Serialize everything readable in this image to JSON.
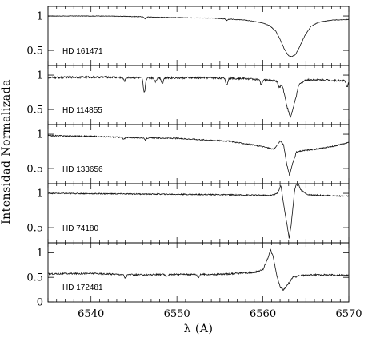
{
  "chart_data": {
    "type": "line",
    "ylabel": "Intensidad Normalizada",
    "xlabel": "λ (A)",
    "xlim": [
      6535,
      6570
    ],
    "x_ticks": [
      6540,
      6550,
      6560,
      6570
    ],
    "x_minor_step": 1,
    "grid": false,
    "panels": [
      {
        "label": "HD 161471",
        "ylim": [
          0.28,
          1.14
        ],
        "y_ticks": [
          0.5,
          1
        ],
        "y_tick_labels": [
          "0.5",
          "1"
        ],
        "line_points": [
          [
            6535,
            1.0
          ],
          [
            6541,
            1.0
          ],
          [
            6544,
            0.995
          ],
          [
            6546,
            0.99
          ],
          [
            6547,
            0.985
          ],
          [
            6551,
            0.975
          ],
          [
            6554,
            0.97
          ],
          [
            6556,
            0.955
          ],
          [
            6558,
            0.94
          ],
          [
            6559,
            0.92
          ],
          [
            6560,
            0.9
          ],
          [
            6560.8,
            0.86
          ],
          [
            6561.5,
            0.78
          ],
          [
            6562,
            0.66
          ],
          [
            6562.5,
            0.52
          ],
          [
            6563,
            0.42
          ],
          [
            6563.4,
            0.41
          ],
          [
            6563.8,
            0.44
          ],
          [
            6564.3,
            0.56
          ],
          [
            6564.9,
            0.72
          ],
          [
            6565.6,
            0.85
          ],
          [
            6566.5,
            0.91
          ],
          [
            6568,
            0.94
          ],
          [
            6570,
            0.95
          ]
        ],
        "absorption_lines": [
          [
            6546.3,
            0.03
          ],
          [
            6555.8,
            0.02
          ]
        ],
        "noise": 0.004
      },
      {
        "label": "HD 114855",
        "ylim": [
          0.28,
          1.14
        ],
        "y_ticks": [
          0.5,
          1
        ],
        "y_tick_labels": [
          "0.5",
          "1"
        ],
        "line_points": [
          [
            6535,
            0.96
          ],
          [
            6538,
            0.97
          ],
          [
            6542,
            0.97
          ],
          [
            6546,
            0.96
          ],
          [
            6550,
            0.96
          ],
          [
            6554,
            0.96
          ],
          [
            6558,
            0.95
          ],
          [
            6560,
            0.93
          ],
          [
            6561.5,
            0.92
          ],
          [
            6562.3,
            0.84
          ],
          [
            6562.8,
            0.55
          ],
          [
            6563.2,
            0.38
          ],
          [
            6563.6,
            0.55
          ],
          [
            6564.2,
            0.86
          ],
          [
            6565,
            0.93
          ],
          [
            6567,
            0.93
          ],
          [
            6569,
            0.92
          ],
          [
            6570,
            0.92
          ]
        ],
        "absorption_lines": [
          [
            6543.9,
            0.05
          ],
          [
            6546.2,
            0.22
          ],
          [
            6547.5,
            0.05
          ],
          [
            6548.3,
            0.08
          ],
          [
            6555.8,
            0.1
          ],
          [
            6559.8,
            0.07
          ],
          [
            6561.9,
            0.06
          ],
          [
            6569.8,
            0.1
          ]
        ],
        "noise": 0.014
      },
      {
        "label": "HD 133656",
        "ylim": [
          0.28,
          1.14
        ],
        "y_ticks": [
          0.5,
          1
        ],
        "y_tick_labels": [
          "0.5",
          "1"
        ],
        "line_points": [
          [
            6535,
            0.98
          ],
          [
            6540,
            0.97
          ],
          [
            6545,
            0.95
          ],
          [
            6550,
            0.94
          ],
          [
            6553,
            0.92
          ],
          [
            6556,
            0.9
          ],
          [
            6558,
            0.86
          ],
          [
            6560,
            0.82
          ],
          [
            6561.3,
            0.78
          ],
          [
            6562,
            0.9
          ],
          [
            6562.4,
            0.85
          ],
          [
            6562.8,
            0.55
          ],
          [
            6563.1,
            0.4
          ],
          [
            6563.4,
            0.55
          ],
          [
            6563.9,
            0.74
          ],
          [
            6564.6,
            0.76
          ],
          [
            6566,
            0.78
          ],
          [
            6568,
            0.82
          ],
          [
            6570,
            0.88
          ]
        ],
        "absorption_lines": [
          [
            6543.8,
            0.03
          ],
          [
            6546.3,
            0.03
          ]
        ],
        "noise": 0.008
      },
      {
        "label": "HD 74180",
        "ylim": [
          0.28,
          1.14
        ],
        "y_ticks": [
          0.5,
          1
        ],
        "y_tick_labels": [
          "0.5",
          "1"
        ],
        "line_points": [
          [
            6535,
            1.0
          ],
          [
            6545,
            0.99
          ],
          [
            6555,
            0.98
          ],
          [
            6561,
            0.97
          ],
          [
            6561.7,
            1.0
          ],
          [
            6562.1,
            1.12
          ],
          [
            6562.4,
            0.85
          ],
          [
            6562.8,
            0.55
          ],
          [
            6563.05,
            0.35
          ],
          [
            6563.3,
            0.55
          ],
          [
            6563.7,
            1.05
          ],
          [
            6564,
            1.18
          ],
          [
            6564.4,
            1.05
          ],
          [
            6565.2,
            0.98
          ],
          [
            6567,
            0.97
          ],
          [
            6569,
            0.96
          ],
          [
            6570,
            0.96
          ]
        ],
        "absorption_lines": [],
        "noise": 0.008
      },
      {
        "label": "HD 172481",
        "ylim": [
          0,
          1.2
        ],
        "y_ticks": [
          0,
          0.5,
          1
        ],
        "y_tick_labels": [
          "0",
          "0.5",
          "1"
        ],
        "line_points": [
          [
            6535,
            0.57
          ],
          [
            6540,
            0.58
          ],
          [
            6545,
            0.55
          ],
          [
            6550,
            0.56
          ],
          [
            6555,
            0.56
          ],
          [
            6559,
            0.6
          ],
          [
            6560,
            0.65
          ],
          [
            6560.6,
            0.9
          ],
          [
            6560.9,
            1.05
          ],
          [
            6561.2,
            0.92
          ],
          [
            6561.6,
            0.55
          ],
          [
            6562,
            0.3
          ],
          [
            6562.4,
            0.24
          ],
          [
            6562.8,
            0.33
          ],
          [
            6563.5,
            0.5
          ],
          [
            6564.5,
            0.54
          ],
          [
            6566,
            0.55
          ],
          [
            6568,
            0.55
          ],
          [
            6570,
            0.54
          ]
        ],
        "absorption_lines": [
          [
            6544,
            0.07
          ],
          [
            6548.8,
            0.05
          ],
          [
            6552.5,
            0.06
          ]
        ],
        "noise": 0.016
      }
    ]
  }
}
